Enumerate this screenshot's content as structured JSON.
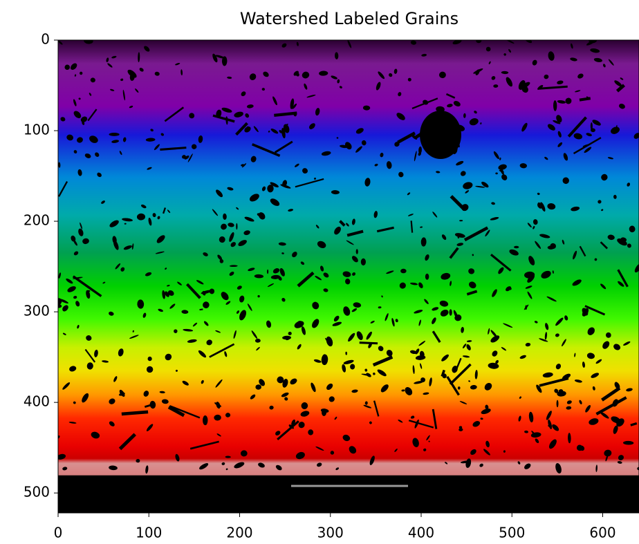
{
  "chart_data": {
    "type": "image",
    "title": "Watershed Labeled Grains",
    "xlim": [
      0,
      640
    ],
    "ylim": [
      522,
      0
    ],
    "xticks": [
      0,
      100,
      200,
      300,
      400,
      500,
      600
    ],
    "yticks": [
      0,
      100,
      200,
      300,
      400,
      500
    ]
  }
}
